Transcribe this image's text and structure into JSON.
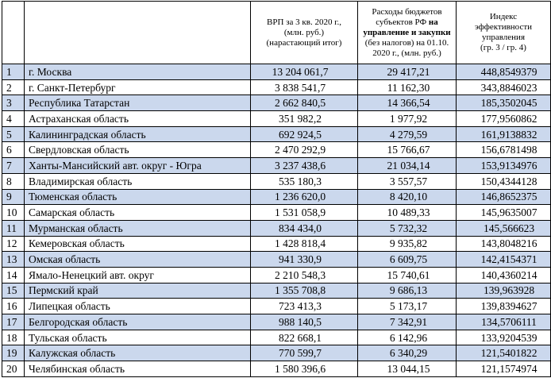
{
  "header": {
    "col_num": "",
    "col_region": "",
    "col_grp": [
      "ВРП за 3 кв. 2020 г.,",
      "(млн. руб.)",
      "(нарастающий итог)"
    ],
    "col_expenses": {
      "line1": "Расходы бюджетов",
      "line2_pre": "субъектов РФ ",
      "line2_bold": "на",
      "line3_bold": "управление и закупки",
      "line4": "(без налогов) на 01.10.",
      "line5": "2020 г., (млн. руб.)"
    },
    "col_index": [
      "Индекс",
      "эффективности",
      "управления",
      "(гр. 3 / гр. 4)"
    ]
  },
  "rows": [
    {
      "num": "1",
      "region": "г. Москва",
      "grp": "13 204 061,7",
      "expenses": "29 417,21",
      "index": "448,8549379",
      "shaded": true
    },
    {
      "num": "2",
      "region": "г. Санкт-Петербург",
      "grp": "3 838 541,7",
      "expenses": "11 162,30",
      "index": "343,8846023",
      "shaded": false
    },
    {
      "num": "3",
      "region": "Республика Татарстан",
      "grp": "2 662 840,5",
      "expenses": "14 366,54",
      "index": "185,3502045",
      "shaded": true
    },
    {
      "num": "4",
      "region": "Астраханская область",
      "grp": "351 982,2",
      "expenses": "1 977,92",
      "index": "177,9560862",
      "shaded": false
    },
    {
      "num": "5",
      "region": "Калининградская область",
      "grp": "692 924,5",
      "expenses": "4 279,59",
      "index": "161,9138832",
      "shaded": true
    },
    {
      "num": "6",
      "region": "Свердловская область",
      "grp": "2 470 292,9",
      "expenses": "15 766,67",
      "index": "156,6781498",
      "shaded": false
    },
    {
      "num": "7",
      "region": "Ханты-Мансийский авт. округ - Югра",
      "grp": "3 237 438,6",
      "expenses": "21 034,14",
      "index": "153,9134976",
      "shaded": true
    },
    {
      "num": "8",
      "region": "Владимирская область",
      "grp": "535 180,3",
      "expenses": "3 557,57",
      "index": "150,4344128",
      "shaded": false
    },
    {
      "num": "9",
      "region": "Тюменская область",
      "grp": "1 236 620,0",
      "expenses": "8 420,10",
      "index": "146,8652375",
      "shaded": true
    },
    {
      "num": "10",
      "region": "Самарская область",
      "grp": "1 531 058,9",
      "expenses": "10 489,33",
      "index": "145,9635007",
      "shaded": false
    },
    {
      "num": "11",
      "region": "Мурманская область",
      "grp": "834 434,0",
      "expenses": "5 732,32",
      "index": "145,566623",
      "shaded": true
    },
    {
      "num": "12",
      "region": "Кемеровская область",
      "grp": "1 428 818,4",
      "expenses": "9 935,82",
      "index": "143,8048216",
      "shaded": false
    },
    {
      "num": "13",
      "region": "Омская область",
      "grp": "941 330,9",
      "expenses": "6 609,75",
      "index": "142,4154371",
      "shaded": true
    },
    {
      "num": "14",
      "region": "Ямало-Ненецкий авт. округ",
      "grp": "2 210 548,3",
      "expenses": "15 740,61",
      "index": "140,4360214",
      "shaded": false
    },
    {
      "num": "15",
      "region": "Пермский край",
      "grp": "1 355 708,8",
      "expenses": "9 686,13",
      "index": "139,963928",
      "shaded": true
    },
    {
      "num": "16",
      "region": "Липецкая область",
      "grp": "723 413,3",
      "expenses": "5 173,17",
      "index": "139,8394627",
      "shaded": false
    },
    {
      "num": "17",
      "region": "Белгородская область",
      "grp": "988 140,5",
      "expenses": "7 342,91",
      "index": "134,5706111",
      "shaded": true
    },
    {
      "num": "18",
      "region": "Тульская область",
      "grp": "822 668,1",
      "expenses": "6 142,96",
      "index": "133,9204539",
      "shaded": false
    },
    {
      "num": "19",
      "region": "Калужская область",
      "grp": "770 599,7",
      "expenses": "6 340,29",
      "index": "121,5401822",
      "shaded": true
    },
    {
      "num": "20",
      "region": "Челябинская область",
      "grp": "1 580 396,6",
      "expenses": "13 044,15",
      "index": "121,1574974",
      "shaded": false
    }
  ],
  "colors": {
    "shaded_row": "#cbd8ed",
    "border": "#000000"
  }
}
